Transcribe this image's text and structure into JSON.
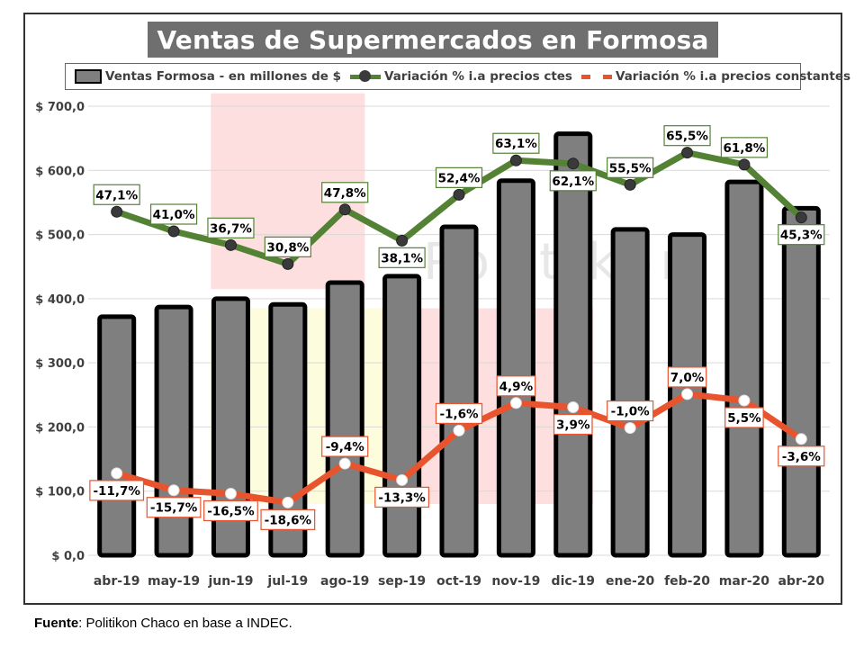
{
  "title": "Ventas de Supermercados en Formosa",
  "legend": {
    "bars": "Ventas Formosa - en millones de $",
    "line1": "Variación % i.a precios ctes",
    "line2": "Variación % i.a precios constantes"
  },
  "watermark": "Politikon",
  "source": {
    "label": "Fuente",
    "text": ": Politikon Chaco en base a INDEC."
  },
  "colors": {
    "bar_fill": "#7f7f7f",
    "bar_stroke": "#000000",
    "green_line": "#548235",
    "green_marker": "#3a3a3a",
    "red_line": "#e8542e",
    "red_marker": "#ffffff",
    "shade_pink": "#fdd9d9",
    "shade_yellow": "#fdfbd6",
    "grid": "#d9d9d9"
  },
  "chart_data": {
    "type": "bar",
    "categories": [
      "abr-19",
      "may-19",
      "jun-19",
      "jul-19",
      "ago-19",
      "sep-19",
      "oct-19",
      "nov-19",
      "dic-19",
      "ene-20",
      "feb-20",
      "mar-20",
      "abr-20"
    ],
    "ylim": [
      0,
      700
    ],
    "yticks": [
      0,
      100,
      200,
      300,
      400,
      500,
      600,
      700
    ],
    "ytick_labels": [
      "$ 0,0",
      "$ 100,0",
      "$ 200,0",
      "$ 300,0",
      "$ 400,0",
      "$ 500,0",
      "$ 600,0",
      "$ 700,0"
    ],
    "grid": true,
    "legend_position": "top",
    "series": [
      {
        "name": "Ventas Formosa - en millones de $",
        "kind": "bar",
        "values": [
          372,
          387,
          400,
          391,
          425,
          435,
          512,
          584,
          657,
          508,
          500,
          582,
          541
        ]
      },
      {
        "name": "Variación % i.a precios ctes",
        "kind": "line",
        "values": [
          47.1,
          41.0,
          36.7,
          30.8,
          47.8,
          38.1,
          52.4,
          63.1,
          62.1,
          55.5,
          65.5,
          61.8,
          45.3
        ],
        "labels": [
          "47,1%",
          "41,0%",
          "36,7%",
          "30,8%",
          "47,8%",
          "38,1%",
          "52,4%",
          "63,1%",
          "62,1%",
          "55,5%",
          "65,5%",
          "61,8%",
          "45,3%"
        ],
        "label_side": [
          "above",
          "above",
          "above",
          "above",
          "above",
          "below",
          "above",
          "above",
          "below",
          "above",
          "above",
          "above",
          "below"
        ]
      },
      {
        "name": "Variación % i.a precios constantes",
        "kind": "line",
        "values": [
          -11.7,
          -15.7,
          -16.5,
          -18.6,
          -9.4,
          -13.3,
          -1.6,
          4.9,
          3.9,
          -1.0,
          7.0,
          5.5,
          -3.6
        ],
        "labels": [
          "-11,7%",
          "-15,7%",
          "-16,5%",
          "-18,6%",
          "-9,4%",
          "-13,3%",
          "-1,6%",
          "4,9%",
          "3,9%",
          "-1,0%",
          "7,0%",
          "5,5%",
          "-3,6%"
        ],
        "label_side": [
          "below",
          "below",
          "below",
          "below",
          "above",
          "below",
          "above",
          "above",
          "below",
          "above",
          "above",
          "below",
          "below"
        ]
      }
    ],
    "shaded_regions": [
      {
        "color": "pink",
        "from_category": "jun-19",
        "to_category": "ago-19",
        "y_from": 415,
        "y_to": 720
      },
      {
        "color": "yellow",
        "from_category": "jun-19",
        "to_category": "sep-19",
        "y_from": 80,
        "y_to": 385
      },
      {
        "color": "pink",
        "from_category": "sep-19",
        "to_category": "dic-19",
        "y_from": 80,
        "y_to": 385
      }
    ]
  }
}
